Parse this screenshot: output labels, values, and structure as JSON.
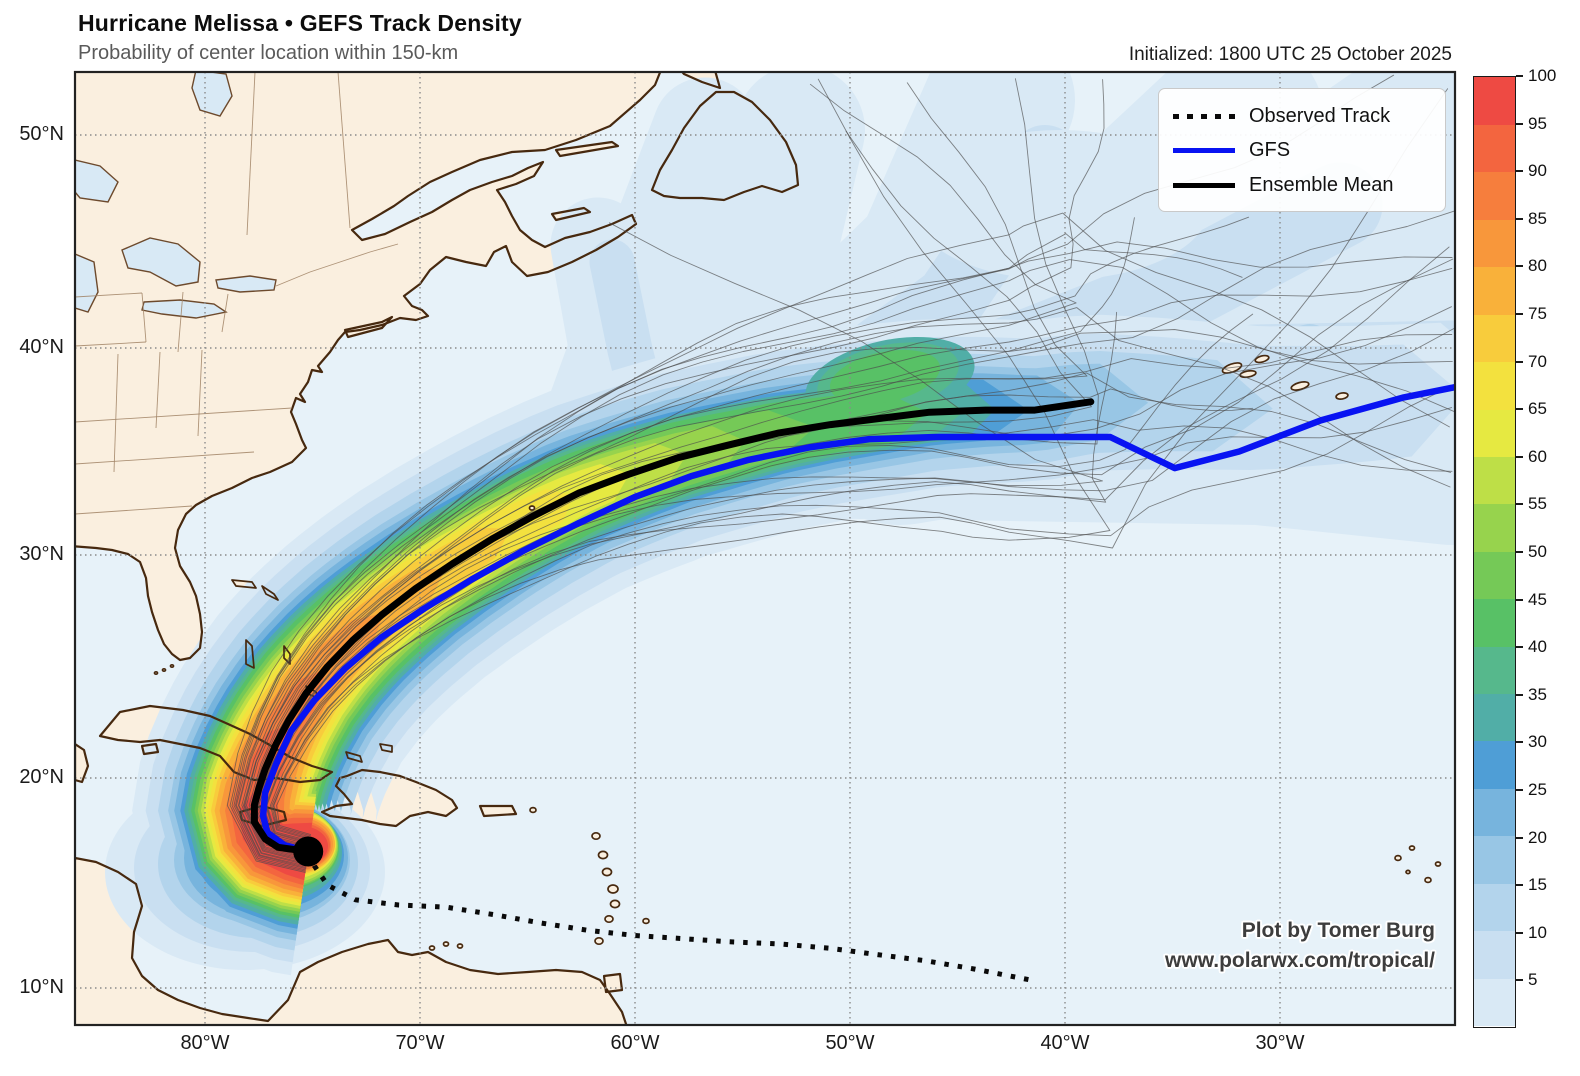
{
  "header": {
    "title": "Hurricane Melissa • GEFS Track Density",
    "subtitle": "Probability of center location within 150-km",
    "initialized": "Initialized: 1800 UTC 25 October 2025"
  },
  "legend": {
    "items": [
      {
        "label": "Observed Track",
        "style": "dotted-black"
      },
      {
        "label": "GFS",
        "style": "solid-blue"
      },
      {
        "label": "Ensemble Mean",
        "style": "solid-black"
      }
    ]
  },
  "colorbar": {
    "units": "%",
    "min": 0,
    "max": 100,
    "step": 5,
    "tick_labels": [
      100,
      95,
      90,
      85,
      80,
      75,
      70,
      65,
      60,
      55,
      50,
      45,
      40,
      35,
      30,
      25,
      20,
      15,
      10,
      5
    ],
    "colors_low_to_high": [
      "#d9e9f5",
      "#c9dff1",
      "#b3d4ec",
      "#98c6e5",
      "#77b4dd",
      "#4f9ed6",
      "#51aea7",
      "#56b88c",
      "#58c166",
      "#75c957",
      "#97d34d",
      "#bedf47",
      "#e6e941",
      "#f3e13e",
      "#f8cc3c",
      "#f9b13a",
      "#f8973b",
      "#f67e3d",
      "#f3653f",
      "#ee4a43"
    ]
  },
  "axes": {
    "x_ticks": [
      {
        "label": "80°W",
        "lon": -80
      },
      {
        "label": "70°W",
        "lon": -70
      },
      {
        "label": "60°W",
        "lon": -60
      },
      {
        "label": "50°W",
        "lon": -50
      },
      {
        "label": "40°W",
        "lon": -40
      },
      {
        "label": "30°W",
        "lon": -30
      }
    ],
    "y_ticks": [
      {
        "label": "50°N",
        "lat": 50
      },
      {
        "label": "40°N",
        "lat": 40
      },
      {
        "label": "30°N",
        "lat": 30
      },
      {
        "label": "20°N",
        "lat": 20
      },
      {
        "label": "10°N",
        "lat": 10
      }
    ]
  },
  "attribution": {
    "line1": "Plot by Tomer Burg",
    "line2": "www.polarwx.com/tropical/"
  },
  "chart_data": {
    "type": "track_density_map",
    "title": "Hurricane Melissa • GEFS Track Density",
    "units": "probability (%) of center location within 150 km",
    "lon_range": [
      -86,
      -22
    ],
    "lat_range": [
      8.3,
      53.3
    ],
    "gridline_lons": [
      -80,
      -70,
      -60,
      -50,
      -40,
      -30
    ],
    "gridline_lats": [
      10,
      20,
      30,
      40,
      50
    ],
    "storm_marker": {
      "lon": -75.2,
      "lat": 16.5
    },
    "member_lines_shown": "~30 thin gray ensemble member tracks",
    "track_colors": {
      "observed": "#0a0a0a",
      "gfs": "#0813f2",
      "ensemble_mean": "#000000"
    },
    "tracks": {
      "observed": {
        "name": "Observed Track",
        "points": [
          [
            -41.7,
            10.4
          ],
          [
            -44.2,
            10.9
          ],
          [
            -46.5,
            11.3
          ],
          [
            -48.8,
            11.6
          ],
          [
            -51.0,
            11.9
          ],
          [
            -53.3,
            12.1
          ],
          [
            -55.6,
            12.2
          ],
          [
            -57.8,
            12.35
          ],
          [
            -60.0,
            12.5
          ],
          [
            -62.2,
            12.75
          ],
          [
            -64.4,
            13.1
          ],
          [
            -66.6,
            13.5
          ],
          [
            -68.8,
            13.85
          ],
          [
            -71.0,
            13.95
          ],
          [
            -73.0,
            14.2
          ],
          [
            -74.3,
            14.9
          ],
          [
            -74.9,
            15.8
          ],
          [
            -75.2,
            16.5
          ]
        ]
      },
      "gfs": {
        "name": "GFS",
        "points": [
          [
            -75.2,
            16.5
          ],
          [
            -76.3,
            16.8
          ],
          [
            -77.1,
            17.4
          ],
          [
            -77.3,
            18.2
          ],
          [
            -77.2,
            19.3
          ],
          [
            -76.7,
            20.6
          ],
          [
            -76.0,
            22.1
          ],
          [
            -74.9,
            23.5
          ],
          [
            -73.5,
            24.9
          ],
          [
            -71.8,
            26.3
          ],
          [
            -69.8,
            27.6
          ],
          [
            -67.6,
            28.9
          ],
          [
            -65.2,
            30.2
          ],
          [
            -62.7,
            31.5
          ],
          [
            -60.0,
            32.8
          ],
          [
            -57.4,
            33.8
          ],
          [
            -54.7,
            34.6
          ],
          [
            -51.9,
            35.2
          ],
          [
            -49.1,
            35.6
          ],
          [
            -46.0,
            35.7
          ],
          [
            -43.0,
            35.7
          ],
          [
            -40.0,
            35.7
          ],
          [
            -37.9,
            35.7
          ],
          [
            -34.9,
            34.2
          ],
          [
            -31.9,
            35.0
          ],
          [
            -28.1,
            36.5
          ],
          [
            -24.3,
            37.6
          ],
          [
            -21.9,
            38.1
          ]
        ]
      },
      "ensemble_mean": {
        "name": "Ensemble Mean",
        "points": [
          [
            -75.2,
            16.5
          ],
          [
            -76.6,
            16.7
          ],
          [
            -77.2,
            17.1
          ],
          [
            -77.7,
            17.9
          ],
          [
            -77.7,
            18.7
          ],
          [
            -77.5,
            19.5
          ],
          [
            -77.2,
            20.4
          ],
          [
            -76.7,
            21.5
          ],
          [
            -76.1,
            22.6
          ],
          [
            -75.3,
            23.8
          ],
          [
            -74.3,
            25.0
          ],
          [
            -73.1,
            26.2
          ],
          [
            -71.8,
            27.3
          ],
          [
            -70.2,
            28.5
          ],
          [
            -68.5,
            29.6
          ],
          [
            -66.6,
            30.8
          ],
          [
            -64.7,
            31.9
          ],
          [
            -62.6,
            33.0
          ],
          [
            -60.3,
            33.9
          ],
          [
            -58.0,
            34.7
          ],
          [
            -55.7,
            35.3
          ],
          [
            -53.3,
            35.9
          ],
          [
            -50.9,
            36.3
          ],
          [
            -48.6,
            36.6
          ],
          [
            -46.3,
            36.9
          ],
          [
            -43.7,
            37.0
          ],
          [
            -41.4,
            37.0
          ],
          [
            -38.8,
            37.4
          ]
        ]
      }
    }
  }
}
